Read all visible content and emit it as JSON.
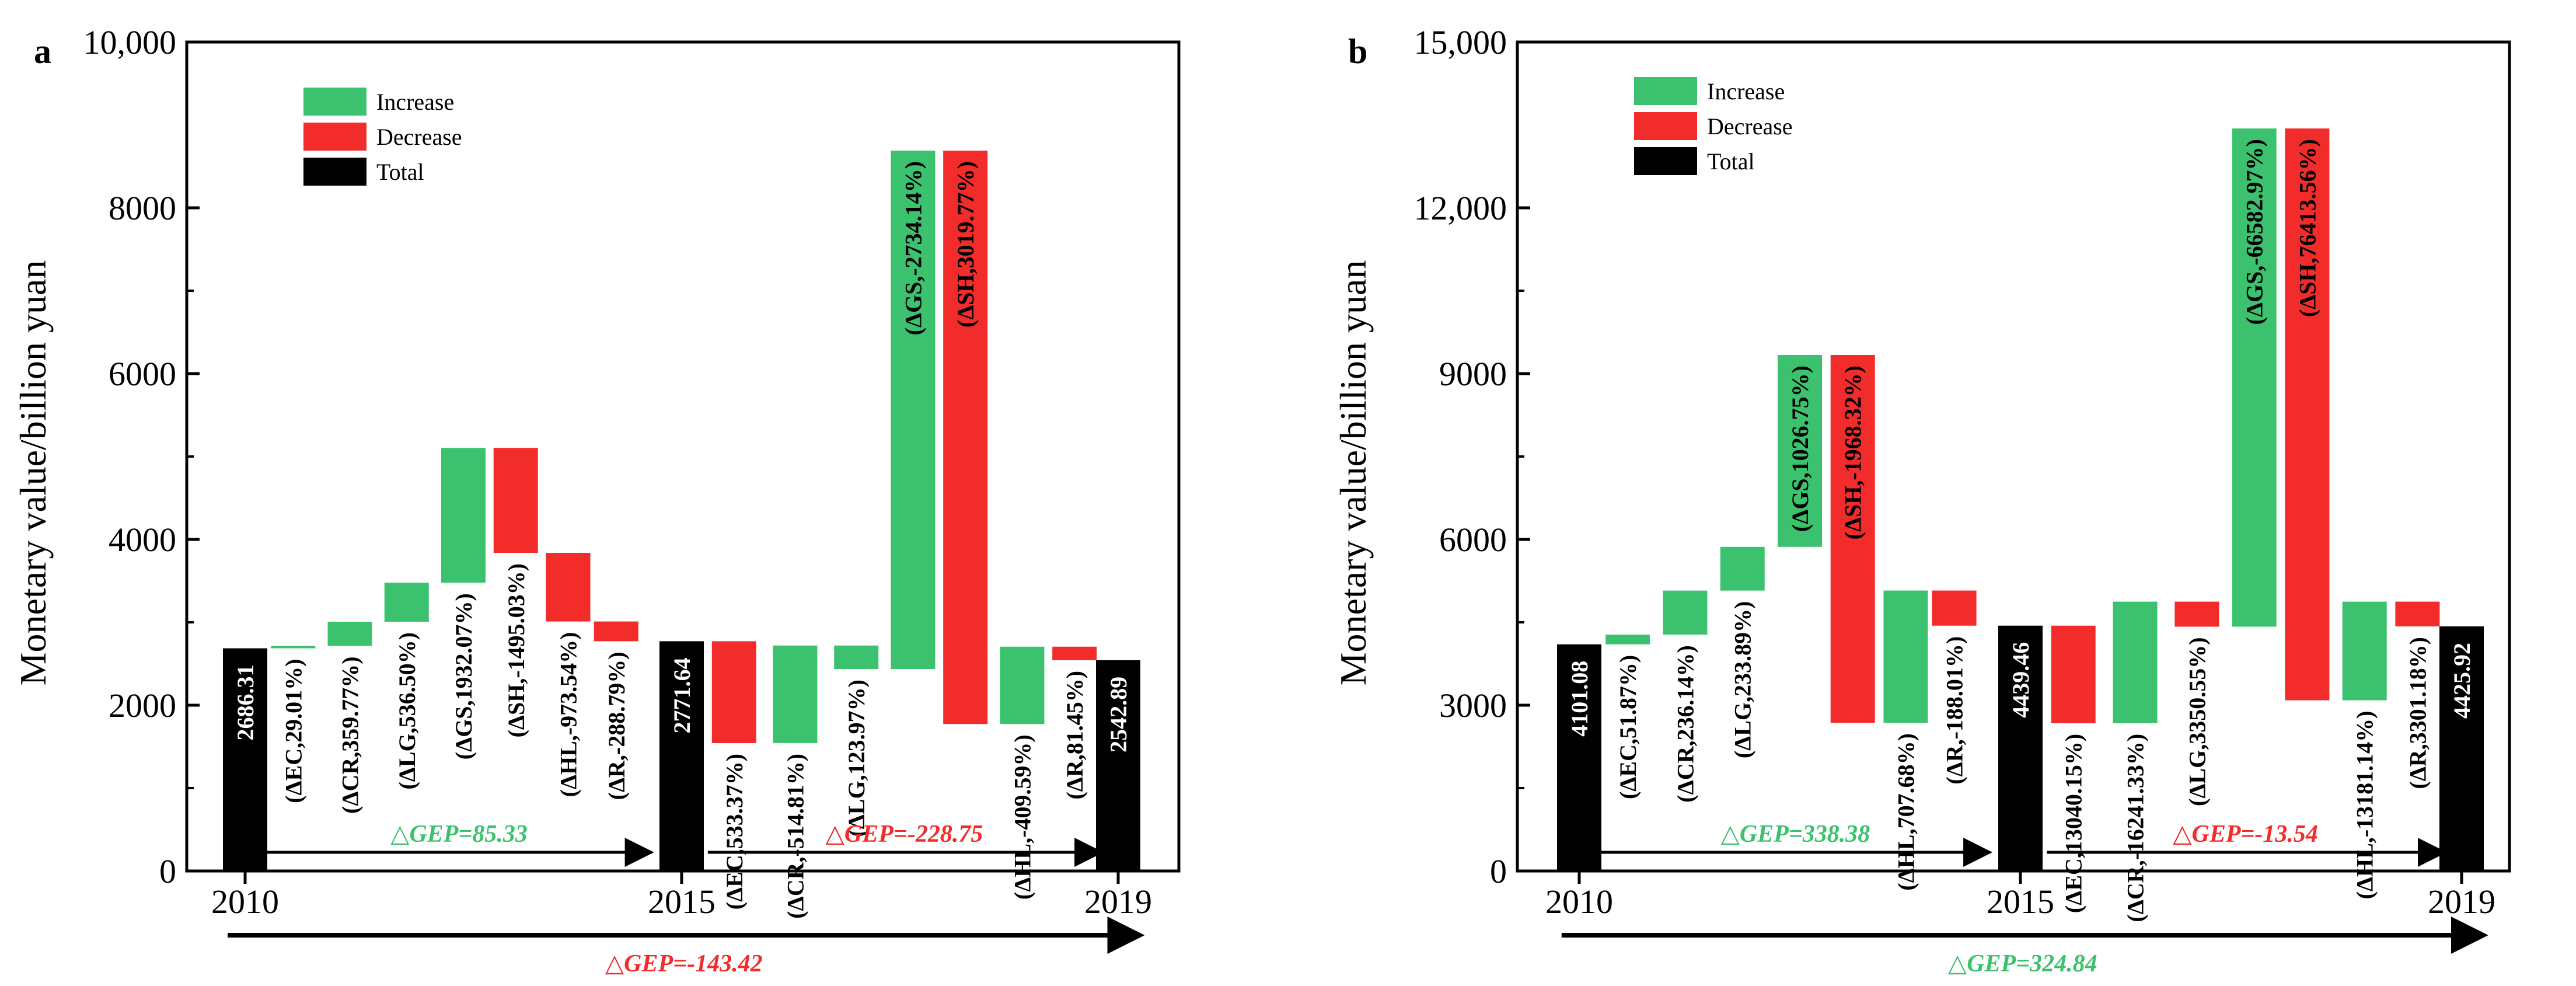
{
  "colors": {
    "increase": "#3cc26f",
    "decrease": "#f22b2b",
    "total": "#000000",
    "text_increase": "#3cc26f",
    "text_decrease": "#f22b2b"
  },
  "legend": {
    "increase": "Increase",
    "decrease": "Decrease",
    "total": "Total"
  },
  "chart_data": [
    {
      "panel": "a",
      "type": "bar",
      "subtype": "waterfall",
      "ylabel": "Monetary value/billion yuan",
      "ylim": [
        0,
        10000
      ],
      "yticks": [
        0,
        2000,
        4000,
        6000,
        8000,
        10000
      ],
      "ytick_labels": [
        "0",
        "2000",
        "4000",
        "6000",
        "8000",
        "10,000"
      ],
      "year_ticks": [
        {
          "label": "2010",
          "pos": 0
        },
        {
          "label": "2015",
          "pos": 10
        },
        {
          "label": "2019",
          "pos": 20
        }
      ],
      "bars": [
        {
          "kind": "total",
          "start": 0,
          "end": 2686.31,
          "label": "2686.31"
        },
        {
          "kind": "increase",
          "start": 2686.31,
          "end": 2715.32,
          "label": "(ΔEC,29.01%)"
        },
        {
          "kind": "increase",
          "start": 2715.32,
          "end": 3007.0,
          "label": "(ΔCR,359.77%)"
        },
        {
          "kind": "increase",
          "start": 3007.0,
          "end": 3478.0,
          "label": "(ΔLG,536.50%)"
        },
        {
          "kind": "increase",
          "start": 3478.0,
          "end": 5104.0,
          "label": "(ΔGS,1932.07%)"
        },
        {
          "kind": "decrease",
          "start": 5104.0,
          "end": 3838.0,
          "label": "(ΔSH,-1495.03%)"
        },
        {
          "kind": "decrease",
          "start": 3838.0,
          "end": 3010.0,
          "label": "(ΔHL,-973.54%)"
        },
        {
          "kind": "decrease",
          "start": 3010.0,
          "end": 2771.64,
          "label": "(ΔR,-288.79%)"
        },
        {
          "kind": "total",
          "start": 0,
          "end": 2771.64,
          "label": "2771.64"
        },
        {
          "kind": "decrease",
          "start": 2771.64,
          "end": 1543.0,
          "label": "(ΔEC,533.37%)"
        },
        {
          "kind": "increase",
          "start": 1543.0,
          "end": 2720.0,
          "label": "(ΔCR,-514.81%)"
        },
        {
          "kind": "increase",
          "start": 2436.0,
          "end": 2720.0,
          "label": "(ΔLG,123.97%)"
        },
        {
          "kind": "increase",
          "start": 2436.0,
          "end": 8690.0,
          "label": "(ΔGS,-2734.14%)"
        },
        {
          "kind": "decrease",
          "start": 8690.0,
          "end": 1773.0,
          "label": "(ΔSH,3019.77%)"
        },
        {
          "kind": "increase",
          "start": 1773.0,
          "end": 2706.0,
          "label": "(ΔHL,-409.59%)"
        },
        {
          "kind": "decrease",
          "start": 2706.0,
          "end": 2542.89,
          "label": "(ΔR,81.45%)"
        },
        {
          "kind": "total",
          "start": 0,
          "end": 2542.89,
          "label": "2542.89"
        }
      ],
      "bar_positions": [
        0,
        1.1,
        2.4,
        3.7,
        5.0,
        6.2,
        7.4,
        8.5,
        10,
        11.2,
        12.6,
        14.0,
        15.3,
        16.5,
        17.8,
        19.0,
        20
      ],
      "arrows": [
        {
          "from": 0.5,
          "to": 9.3,
          "value_text": "△GEP=85.33",
          "color": "increase",
          "row": 1
        },
        {
          "from": 10.6,
          "to": 19.6,
          "value_text": "△GEP=-228.75",
          "color": "decrease",
          "row": 1
        },
        {
          "from": -0.4,
          "to": 20.5,
          "value_text": "△GEP=-143.42",
          "color": "decrease",
          "row": 2
        }
      ]
    },
    {
      "panel": "b",
      "type": "bar",
      "subtype": "waterfall",
      "ylabel": "Monetary value/billion yuan",
      "ylim": [
        0,
        15000
      ],
      "yticks": [
        0,
        3000,
        6000,
        9000,
        12000,
        15000
      ],
      "ytick_labels": [
        "0",
        "3000",
        "6000",
        "9000",
        "12,000",
        "15,000"
      ],
      "year_ticks": [
        {
          "label": "2010",
          "pos": 0
        },
        {
          "label": "2015",
          "pos": 10
        },
        {
          "label": "2019",
          "pos": 20
        }
      ],
      "bars": [
        {
          "kind": "total",
          "start": 0,
          "end": 4101.08,
          "label": "4101.08"
        },
        {
          "kind": "increase",
          "start": 4101.08,
          "end": 4276.0,
          "label": "(ΔEC,51.87%)"
        },
        {
          "kind": "increase",
          "start": 4276.0,
          "end": 5074.0,
          "label": "(ΔCR,236.14%)"
        },
        {
          "kind": "increase",
          "start": 5074.0,
          "end": 5865.0,
          "label": "(ΔLG,233.89%)"
        },
        {
          "kind": "increase",
          "start": 5865.0,
          "end": 9338.0,
          "label": "(ΔGS,1026.75%)"
        },
        {
          "kind": "decrease",
          "start": 9338.0,
          "end": 2682.0,
          "label": "(ΔSH,-1968.32%)"
        },
        {
          "kind": "increase",
          "start": 2682.0,
          "end": 5075.0,
          "label": "(ΔHL,707.68%)"
        },
        {
          "kind": "decrease",
          "start": 5075.0,
          "end": 4439.46,
          "label": "(ΔR,-188.01%)"
        },
        {
          "kind": "total",
          "start": 0,
          "end": 4439.46,
          "label": "4439.46"
        },
        {
          "kind": "decrease",
          "start": 4439.46,
          "end": 2675.0,
          "label": "(ΔEC,13040.15%)"
        },
        {
          "kind": "increase",
          "start": 2675.0,
          "end": 4874.0,
          "label": "(ΔCR,-16241.33%)"
        },
        {
          "kind": "decrease",
          "start": 4874.0,
          "end": 4421.0,
          "label": "(ΔLG,3350.55%)"
        },
        {
          "kind": "increase",
          "start": 4421.0,
          "end": 13436.0,
          "label": "(ΔGS,-66582.97%)"
        },
        {
          "kind": "decrease",
          "start": 13436.0,
          "end": 3089.0,
          "label": "(ΔSH,76413.56%)"
        },
        {
          "kind": "increase",
          "start": 3089.0,
          "end": 4874.0,
          "label": "(ΔHL,-13181.14%)"
        },
        {
          "kind": "decrease",
          "start": 4874.0,
          "end": 4425.92,
          "label": "(ΔR,3301.18%)"
        },
        {
          "kind": "total",
          "start": 0,
          "end": 4425.92,
          "label": "4425.92"
        }
      ],
      "bar_positions": [
        0,
        1.1,
        2.4,
        3.7,
        5.0,
        6.2,
        7.4,
        8.5,
        10,
        11.2,
        12.6,
        14.0,
        15.3,
        16.5,
        17.8,
        19.0,
        20
      ],
      "arrows": [
        {
          "from": 0.5,
          "to": 9.3,
          "value_text": "△GEP=338.38",
          "color": "increase",
          "row": 1
        },
        {
          "from": 10.6,
          "to": 19.6,
          "value_text": "△GEP=-13.54",
          "color": "decrease",
          "row": 1
        },
        {
          "from": -0.4,
          "to": 20.5,
          "value_text": "△GEP=324.84",
          "color": "increase",
          "row": 2
        }
      ]
    }
  ]
}
